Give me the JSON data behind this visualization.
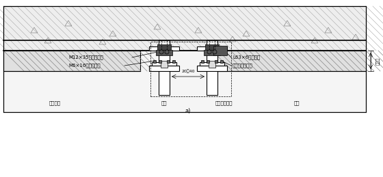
{
  "bg_color": "#ffffff",
  "line_color": "#000000",
  "title_label": "a)",
  "labels": {
    "M12": "M12×35不锈钐螺栀",
    "M6": "M6×16不锈钐螺栀",
    "L63": "L63×6镈锁角钢",
    "rivet": "不锈钐连接螺钉",
    "panel": "陶土挂板",
    "keel": "龙骨",
    "vert_keel": "垂直间隔龙骨",
    "hanger": "挂件",
    "dim": "20～40",
    "adjustable": "可调节"
  },
  "figsize": [
    5.6,
    2.59
  ],
  "dpi": 100
}
